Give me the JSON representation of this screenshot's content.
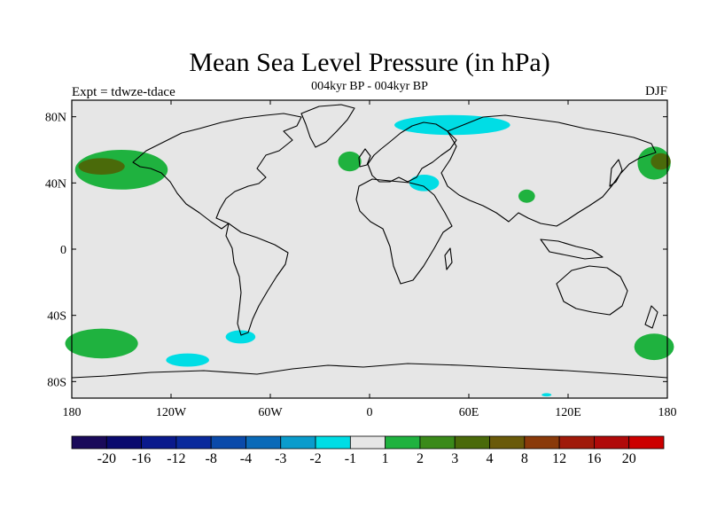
{
  "title": "Mean Sea Level Pressure (in hPa)",
  "subtitle": "004kyr BP - 004kyr BP",
  "left_label": "Expt = tdwze-tdace",
  "right_label": "DJF",
  "map": {
    "projection": "cylindrical-equidistant",
    "lon_range": [
      -180,
      180
    ],
    "lat_range": [
      -90,
      90
    ],
    "background_color": "#e6e6e6",
    "coastline_color": "#000000",
    "x_ticks": [
      {
        "lon": -180,
        "label": "180"
      },
      {
        "lon": -120,
        "label": "120W"
      },
      {
        "lon": -60,
        "label": "60W"
      },
      {
        "lon": 0,
        "label": "0"
      },
      {
        "lon": 60,
        "label": "60E"
      },
      {
        "lon": 120,
        "label": "120E"
      },
      {
        "lon": 180,
        "label": "180"
      }
    ],
    "y_ticks": [
      {
        "lat": 80,
        "label": "80N"
      },
      {
        "lat": 40,
        "label": "40N"
      },
      {
        "lat": 0,
        "label": "0"
      },
      {
        "lat": -40,
        "label": "40S"
      },
      {
        "lat": -80,
        "label": "80S"
      }
    ],
    "anomaly_regions": [
      {
        "name": "north-pacific-positive",
        "level": 2,
        "lon": -150,
        "lat": 48,
        "rlon": 28,
        "rlat": 12
      },
      {
        "name": "north-pacific-core",
        "level": 3,
        "lon": -162,
        "lat": 50,
        "rlon": 14,
        "rlat": 5
      },
      {
        "name": "west-pacific-positive",
        "level": 2,
        "lon": 172,
        "lat": 52,
        "rlon": 10,
        "rlat": 10
      },
      {
        "name": "west-pacific-core",
        "level": 3,
        "lon": 176,
        "lat": 53,
        "rlon": 6,
        "rlat": 5
      },
      {
        "name": "north-atlantic-positive",
        "level": 2,
        "lon": -12,
        "lat": 53,
        "rlon": 7,
        "rlat": 6
      },
      {
        "name": "central-asia-positive",
        "level": 2,
        "lon": 95,
        "lat": 32,
        "rlon": 5,
        "rlat": 4
      },
      {
        "name": "arctic-negative",
        "level": -1,
        "lon": 50,
        "lat": 75,
        "rlon": 35,
        "rlat": 6
      },
      {
        "name": "mediterranean-negative",
        "level": -1,
        "lon": 33,
        "lat": 40,
        "rlon": 9,
        "rlat": 5
      },
      {
        "name": "south-pacific-positive",
        "level": 2,
        "lon": -162,
        "lat": -57,
        "rlon": 22,
        "rlat": 9
      },
      {
        "name": "southern-ocean-positive",
        "level": 2,
        "lon": 172,
        "lat": -59,
        "rlon": 12,
        "rlat": 8
      },
      {
        "name": "drake-negative",
        "level": -1,
        "lon": -78,
        "lat": -53,
        "rlon": 9,
        "rlat": 4
      },
      {
        "name": "amundsen-negative",
        "level": -1,
        "lon": -110,
        "lat": -67,
        "rlon": 13,
        "rlat": 4
      },
      {
        "name": "antarctic-negative",
        "level": -1,
        "lon": 107,
        "lat": -88,
        "rlon": 3,
        "rlat": 1
      }
    ]
  },
  "colorbar": {
    "labels": [
      "-20",
      "-16",
      "-12",
      "-8",
      "-4",
      "-3",
      "-2",
      "-1",
      "1",
      "2",
      "3",
      "4",
      "8",
      "12",
      "16",
      "20"
    ],
    "colors": [
      "#1a0a5a",
      "#0a0a6e",
      "#0a1a8c",
      "#0a2a9c",
      "#0a4aaa",
      "#0a6ab8",
      "#0a9ccc",
      "#00dde5",
      "#e6e6e6",
      "#1fb23f",
      "#3a8a1a",
      "#4a6a0a",
      "#6a5a0a",
      "#8a3a0a",
      "#a01a0a",
      "#b00a0a",
      "#cc0000"
    ],
    "level_colors": {
      "-1": "#00dde5",
      "2": "#1fb23f",
      "3": "#4a6a0a"
    }
  }
}
